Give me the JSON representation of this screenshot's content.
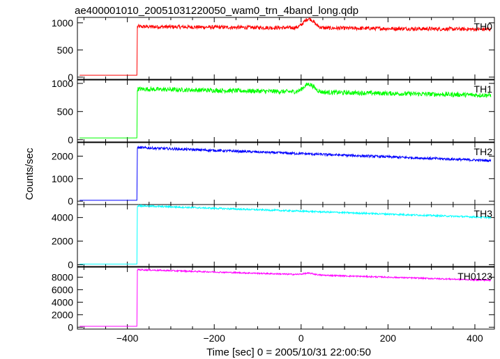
{
  "title": "ae400001010_20051031220050_wam0_trn_4band_long.qdp",
  "ylabel": "Counts/sec",
  "xlabel": "Time [sec] 0 = 2005/10/31 22:00:50",
  "chart_data": {
    "type": "line",
    "x_ticks": [
      -400,
      -200,
      0,
      200,
      400
    ],
    "xlim": [
      -515,
      445
    ],
    "panels": [
      {
        "name": "TH0",
        "color": "#ff0000",
        "ylim": [
          -40,
          1100
        ],
        "y_ticks": [
          0,
          500,
          1000
        ],
        "pre": 35,
        "start": 930,
        "end": 880,
        "noise": 35,
        "bump": 170
      },
      {
        "name": "TH1",
        "color": "#00ff00",
        "ylim": [
          -40,
          1060
        ],
        "y_ticks": [
          0,
          500,
          1000
        ],
        "pre": 30,
        "start": 900,
        "end": 790,
        "noise": 40,
        "bump": 140
      },
      {
        "name": "TH2",
        "color": "#0000ff",
        "ylim": [
          -150,
          2600
        ],
        "y_ticks": [
          0,
          1000,
          2000
        ],
        "pre": 40,
        "start": 2380,
        "end": 1800,
        "noise": 55,
        "bump": 0
      },
      {
        "name": "TH3",
        "color": "#00ffff",
        "ylim": [
          -150,
          5100
        ],
        "y_ticks": [
          0,
          2000,
          4000
        ],
        "pre": 50,
        "start": 5000,
        "end": 4000,
        "noise": 70,
        "bump": 0
      },
      {
        "name": "TH0123",
        "color": "#ff00ff",
        "ylim": [
          -300,
          9600
        ],
        "y_ticks": [
          0,
          2000,
          4000,
          6000,
          8000
        ],
        "pre": 150,
        "start": 9200,
        "end": 7500,
        "noise": 110,
        "bump": 250
      }
    ]
  }
}
